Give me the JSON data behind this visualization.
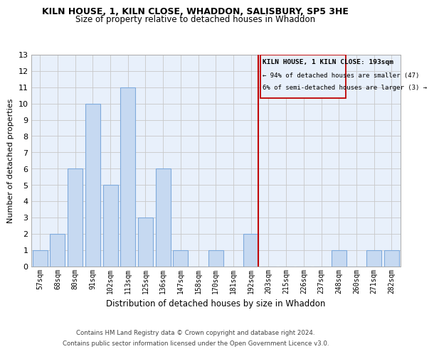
{
  "title": "KILN HOUSE, 1, KILN CLOSE, WHADDON, SALISBURY, SP5 3HE",
  "subtitle": "Size of property relative to detached houses in Whaddon",
  "xlabel": "Distribution of detached houses by size in Whaddon",
  "ylabel": "Number of detached properties",
  "bin_labels": [
    "57sqm",
    "68sqm",
    "80sqm",
    "91sqm",
    "102sqm",
    "113sqm",
    "125sqm",
    "136sqm",
    "147sqm",
    "158sqm",
    "170sqm",
    "181sqm",
    "192sqm",
    "203sqm",
    "215sqm",
    "226sqm",
    "237sqm",
    "248sqm",
    "260sqm",
    "271sqm",
    "282sqm"
  ],
  "bar_heights": [
    1,
    2,
    6,
    10,
    5,
    11,
    3,
    6,
    1,
    0,
    1,
    0,
    2,
    0,
    0,
    0,
    0,
    1,
    0,
    1,
    1
  ],
  "bar_color": "#c6d9f1",
  "bar_edgecolor": "#7faadc",
  "highlight_index": 12,
  "highlight_line_color": "#c00000",
  "ylim": [
    0,
    13
  ],
  "yticks": [
    0,
    1,
    2,
    3,
    4,
    5,
    6,
    7,
    8,
    9,
    10,
    11,
    12,
    13
  ],
  "annotation_title": "KILN HOUSE, 1 KILN CLOSE: 193sqm",
  "annotation_line1": "← 94% of detached houses are smaller (47)",
  "annotation_line2": "6% of semi-detached houses are larger (3) →",
  "footer_line1": "Contains HM Land Registry data © Crown copyright and database right 2024.",
  "footer_line2": "Contains public sector information licensed under the Open Government Licence v3.0.",
  "background_color": "#ffffff",
  "axes_facecolor": "#e8f0fb",
  "grid_color": "#c8c8c8",
  "ann_box_facecolor": "#e8f0fb"
}
